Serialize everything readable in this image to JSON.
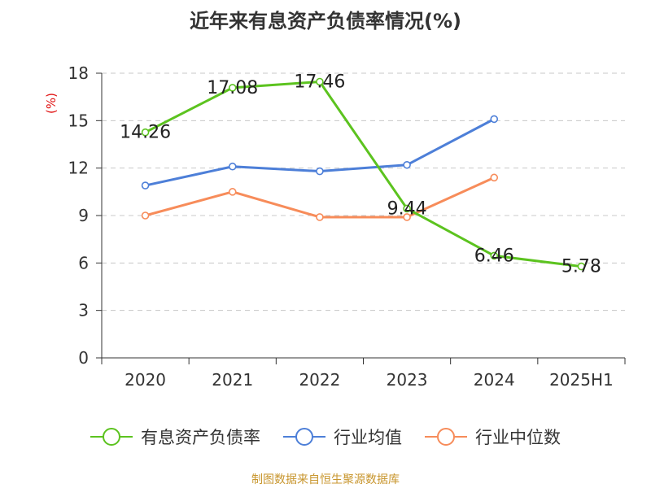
{
  "title": "近年来有息资产负债率情况(%)",
  "footer": "制图数据来自恒生聚源数据库",
  "colors": {
    "series_a": "#5cc31f",
    "series_b": "#4d7fd8",
    "series_c": "#f78c5a",
    "unit": "#e01010"
  },
  "chart_data": {
    "type": "line",
    "ylabel": "(%)",
    "ylim": [
      0,
      18
    ],
    "yticks": [
      "0",
      "3",
      "6",
      "9",
      "12",
      "15",
      "18"
    ],
    "categories": [
      "2020",
      "2021",
      "2022",
      "2023",
      "2024",
      "2025H1"
    ],
    "grid": true,
    "legend_position": "bottom",
    "series": [
      {
        "name": "有息资产负债率",
        "values": [
          14.26,
          17.08,
          17.46,
          9.44,
          6.46,
          5.78
        ],
        "labels": [
          "14.26",
          "17.08",
          "17.46",
          "9.44",
          "6.46",
          "5.78"
        ]
      },
      {
        "name": "行业均值",
        "values": [
          10.9,
          12.1,
          11.8,
          12.2,
          15.1,
          null
        ]
      },
      {
        "name": "行业中位数",
        "values": [
          9.0,
          10.5,
          8.9,
          8.9,
          11.4,
          null
        ]
      }
    ]
  }
}
